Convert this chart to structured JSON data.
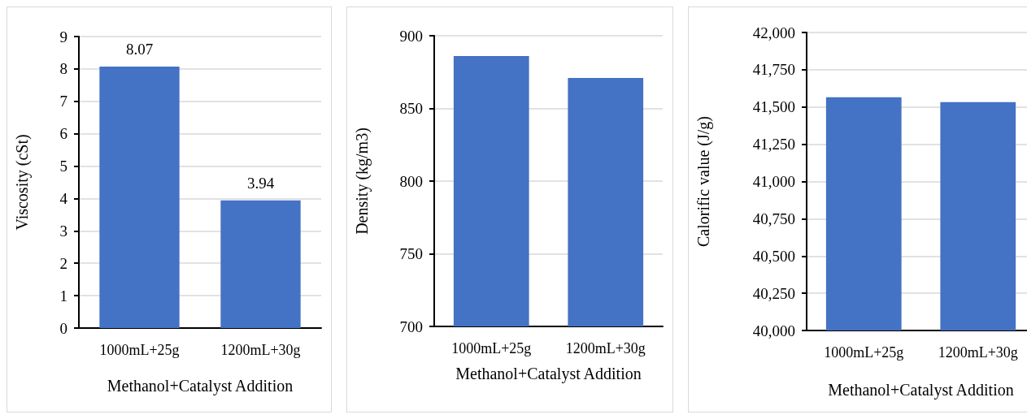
{
  "chart_data": [
    {
      "type": "bar",
      "categories": [
        "1000mL+25g",
        "1200mL+30g"
      ],
      "values": [
        8.07,
        3.94
      ],
      "color": "#4472c4",
      "xlabel": "Methanol+Catalyst Addition",
      "ylabel": "Viscosity (cSt)",
      "ylim": [
        0,
        9
      ],
      "yticks": [
        0,
        1,
        2,
        3,
        4,
        5,
        6,
        7,
        8,
        9
      ],
      "grid": "y",
      "data_labels": true
    },
    {
      "type": "bar",
      "categories": [
        "1000mL+25g",
        "1200mL+30g"
      ],
      "values": [
        886,
        871
      ],
      "color": "#4472c4",
      "xlabel": "Methanol+Catalyst Addition",
      "ylabel": "Density (kg/m3)",
      "ylim": [
        700,
        900
      ],
      "yticks": [
        700,
        750,
        800,
        850,
        900
      ],
      "grid": "y"
    },
    {
      "type": "bar",
      "categories": [
        "1000mL+25g",
        "1200mL+30g"
      ],
      "values": [
        41565,
        41533
      ],
      "color": "#4472c4",
      "xlabel": "Methanol+Catalyst Addition",
      "ylabel": "Calorific value (J/g)",
      "ylim": [
        40000,
        42000
      ],
      "yticks": [
        {
          "value": 40000,
          "label": "40,000"
        },
        {
          "value": 40250,
          "label": "40,250"
        },
        {
          "value": 40500,
          "label": "40,500"
        },
        {
          "value": 40750,
          "label": "40,750"
        },
        {
          "value": 41000,
          "label": "41,000"
        },
        {
          "value": 41250,
          "label": "41,250"
        },
        {
          "value": 41500,
          "label": "41,500"
        },
        {
          "value": 41750,
          "label": "41,750"
        },
        {
          "value": 42000,
          "label": "42,000"
        }
      ],
      "grid": "y"
    }
  ]
}
